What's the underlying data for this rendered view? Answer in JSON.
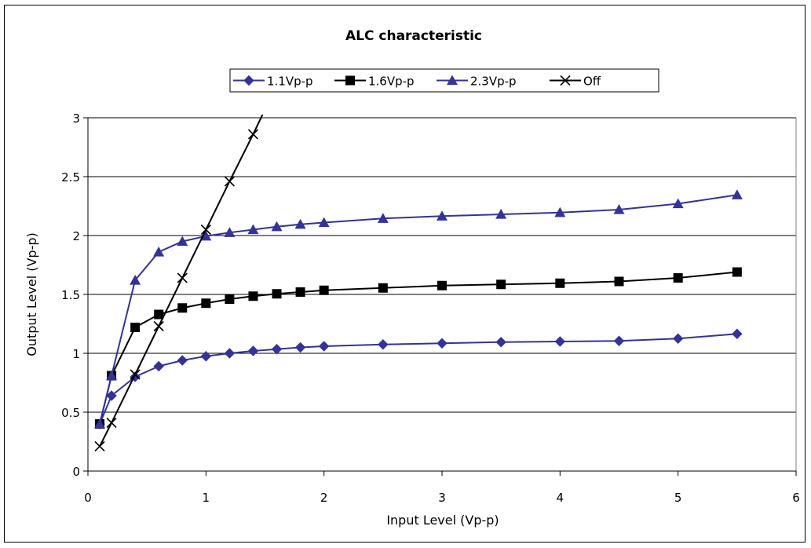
{
  "chart_data": {
    "type": "line",
    "title": "ALC characteristic",
    "xlabel": "Input Level (Vp-p)",
    "ylabel": "Output Level (Vp-p)",
    "xlim": [
      0,
      6
    ],
    "ylim": [
      0,
      3
    ],
    "xticks": [
      0,
      1,
      2,
      3,
      4,
      5,
      6
    ],
    "yticks": [
      0,
      0.5,
      1,
      1.5,
      2,
      2.5,
      3
    ],
    "grid": "horizontal",
    "legend_position": "top",
    "series": [
      {
        "name": "1.1Vp-p",
        "color": "#333399",
        "marker": "diamond",
        "x": [
          0.1,
          0.2,
          0.4,
          0.6,
          0.8,
          1.0,
          1.2,
          1.4,
          1.6,
          1.8,
          2.0,
          2.5,
          3.0,
          3.5,
          4.0,
          4.5,
          5.0,
          5.5
        ],
        "y": [
          0.4,
          0.64,
          0.8,
          0.89,
          0.94,
          0.975,
          1.0,
          1.02,
          1.035,
          1.05,
          1.06,
          1.075,
          1.085,
          1.095,
          1.1,
          1.105,
          1.125,
          1.165
        ]
      },
      {
        "name": "1.6Vp-p",
        "color": "#000000",
        "marker": "square",
        "x": [
          0.1,
          0.2,
          0.4,
          0.6,
          0.8,
          1.0,
          1.2,
          1.4,
          1.6,
          1.8,
          2.0,
          2.5,
          3.0,
          3.5,
          4.0,
          4.5,
          5.0,
          5.5
        ],
        "y": [
          0.4,
          0.81,
          1.22,
          1.33,
          1.385,
          1.425,
          1.46,
          1.485,
          1.505,
          1.52,
          1.535,
          1.555,
          1.575,
          1.585,
          1.595,
          1.61,
          1.64,
          1.69
        ]
      },
      {
        "name": "2.3Vp-p",
        "color": "#333399",
        "marker": "triangle",
        "x": [
          0.1,
          0.2,
          0.4,
          0.6,
          0.8,
          1.0,
          1.2,
          1.4,
          1.6,
          1.8,
          2.0,
          2.5,
          3.0,
          3.5,
          4.0,
          4.5,
          5.0,
          5.5
        ],
        "y": [
          0.4,
          0.81,
          1.62,
          1.86,
          1.95,
          1.995,
          2.025,
          2.05,
          2.075,
          2.095,
          2.11,
          2.145,
          2.165,
          2.18,
          2.195,
          2.22,
          2.27,
          2.345
        ]
      },
      {
        "name": "Off",
        "color": "#000000",
        "marker": "x",
        "x": [
          0.1,
          0.2,
          0.4,
          0.6,
          0.8,
          1.0,
          1.2,
          1.4,
          1.5
        ],
        "y": [
          0.21,
          0.41,
          0.82,
          1.23,
          1.64,
          2.05,
          2.46,
          2.86,
          3.07
        ],
        "marker_count": 8
      }
    ]
  }
}
